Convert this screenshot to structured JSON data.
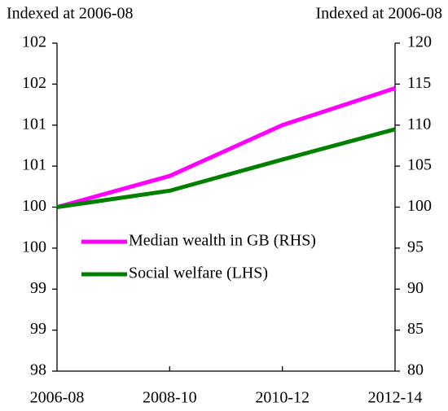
{
  "chart_data": {
    "type": "line",
    "y_label": "Indexed at 2006-08",
    "y2_label": "Indexed at 2006-08",
    "categories": [
      "2006-08",
      "2008-10",
      "2010-12",
      "2012-14"
    ],
    "series": [
      {
        "name": "Median wealth in GB (RHS)",
        "color": "#ff00ff",
        "axis": "y2",
        "values": [
          100,
          103.8,
          110,
          114.5
        ]
      },
      {
        "name": "Social welfare (LHS)",
        "color": "#008000",
        "values": [
          100,
          100.2,
          100.58,
          100.95
        ]
      }
    ],
    "ylim": [
      98,
      102
    ],
    "yticks": [
      98,
      {
        "value": 98.5,
        "label": "99"
      },
      99,
      {
        "value": 99.5,
        "label": "100"
      },
      100,
      {
        "value": 100.5,
        "label": "101"
      },
      101,
      {
        "value": 101.5,
        "label": "102"
      },
      102
    ],
    "y2lim": [
      80,
      120
    ],
    "y2ticks": [
      80,
      85,
      90,
      95,
      100,
      105,
      110,
      115,
      120
    ],
    "grid": false,
    "legend": "center"
  }
}
